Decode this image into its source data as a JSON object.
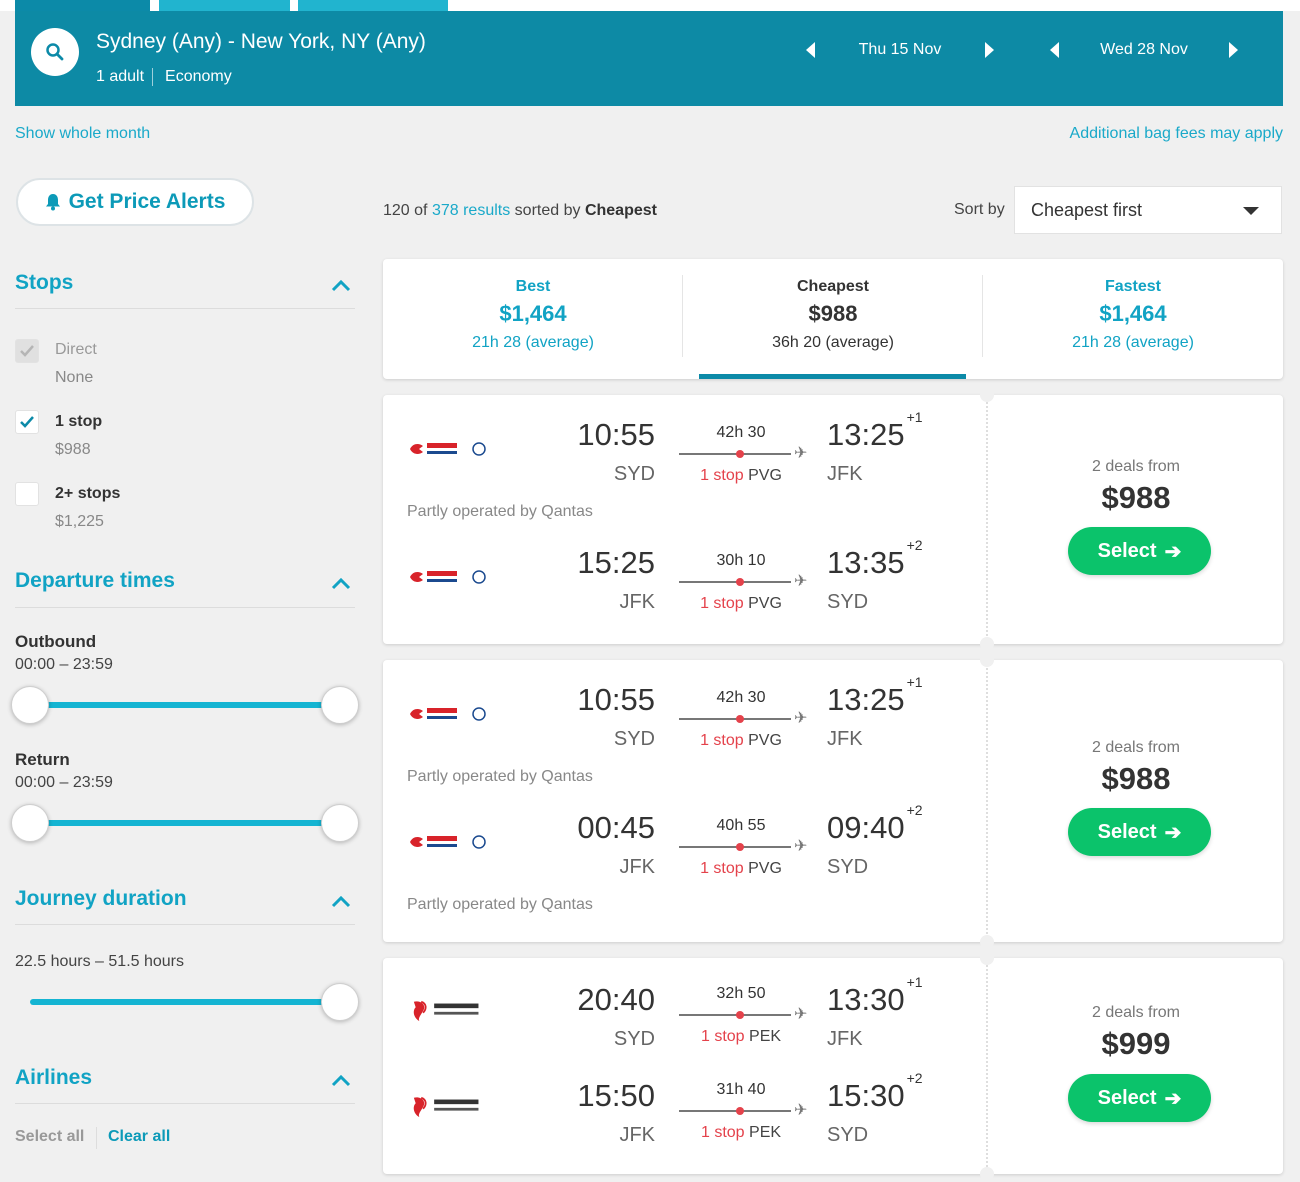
{
  "header": {
    "route": "Sydney (Any) - New York, NY (Any)",
    "adults": "1 adult",
    "cabin": "Economy",
    "outbound_date": "Thu 15 Nov",
    "return_date": "Wed 28 Nov"
  },
  "links": {
    "show_month": "Show whole month",
    "bag_fees": "Additional bag fees may apply"
  },
  "alerts": {
    "label": "Get Price Alerts"
  },
  "filters": {
    "stops": {
      "title": "Stops",
      "options": [
        {
          "label": "Direct",
          "price": "None",
          "checked": true,
          "disabled": true
        },
        {
          "label": "1 stop",
          "price": "$988",
          "checked": true,
          "disabled": false
        },
        {
          "label": "2+ stops",
          "price": "$1,225",
          "checked": false,
          "disabled": false
        }
      ]
    },
    "departure": {
      "title": "Departure times",
      "outbound_label": "Outbound",
      "outbound_range": "00:00 – 23:59",
      "return_label": "Return",
      "return_range": "00:00 – 23:59"
    },
    "duration": {
      "title": "Journey duration",
      "range": "22.5 hours – 51.5 hours"
    },
    "airlines": {
      "title": "Airlines",
      "select_all": "Select all",
      "clear_all": "Clear all"
    }
  },
  "results": {
    "shown": "120",
    "of": "of",
    "total": "378 results",
    "sorted_by": "sorted by",
    "sort_key": "Cheapest",
    "sort_label": "Sort by",
    "sort_value": "Cheapest first"
  },
  "summary": [
    {
      "label": "Best",
      "price": "$1,464",
      "duration": "21h 28 (average)"
    },
    {
      "label": "Cheapest",
      "price": "$988",
      "duration": "36h 20 (average)"
    },
    {
      "label": "Fastest",
      "price": "$1,464",
      "duration": "21h 28 (average)"
    }
  ],
  "cards": [
    {
      "legs": [
        {
          "airline": "China Eastern",
          "dep_time": "10:55",
          "dep_airport": "SYD",
          "duration": "42h 30",
          "stops": "1 stop",
          "via": "PVG",
          "arr_time": "13:25",
          "day_offset": "+1",
          "arr_airport": "JFK"
        },
        {
          "airline": "China Eastern",
          "dep_time": "15:25",
          "dep_airport": "JFK",
          "duration": "30h 10",
          "stops": "1 stop",
          "via": "PVG",
          "arr_time": "13:35",
          "day_offset": "+2",
          "arr_airport": "SYD"
        }
      ],
      "note": "Partly operated by Qantas",
      "deals": "2 deals from",
      "price": "$988",
      "select": "Select"
    },
    {
      "legs": [
        {
          "airline": "China Eastern",
          "dep_time": "10:55",
          "dep_airport": "SYD",
          "duration": "42h 30",
          "stops": "1 stop",
          "via": "PVG",
          "arr_time": "13:25",
          "day_offset": "+1",
          "arr_airport": "JFK"
        },
        {
          "airline": "China Eastern",
          "dep_time": "00:45",
          "dep_airport": "JFK",
          "duration": "40h 55",
          "stops": "1 stop",
          "via": "PVG",
          "arr_time": "09:40",
          "day_offset": "+2",
          "arr_airport": "SYD"
        }
      ],
      "note1": "Partly operated by Qantas",
      "note2": "Partly operated by Qantas",
      "deals": "2 deals from",
      "price": "$988",
      "select": "Select"
    },
    {
      "legs": [
        {
          "airline": "Air China",
          "dep_time": "20:40",
          "dep_airport": "SYD",
          "duration": "32h 50",
          "stops": "1 stop",
          "via": "PEK",
          "arr_time": "13:30",
          "day_offset": "+1",
          "arr_airport": "JFK"
        },
        {
          "airline": "Air China",
          "dep_time": "15:50",
          "dep_airport": "JFK",
          "duration": "31h 40",
          "stops": "1 stop",
          "via": "PEK",
          "arr_time": "15:30",
          "day_offset": "+2",
          "arr_airport": "SYD"
        }
      ],
      "deals": "2 deals from",
      "price": "$999",
      "select": "Select"
    }
  ],
  "colors": {
    "brand": "#0d8aa5",
    "accent": "#1aa9c9",
    "select": "#0bc36b",
    "stop_red": "#e4424b"
  }
}
